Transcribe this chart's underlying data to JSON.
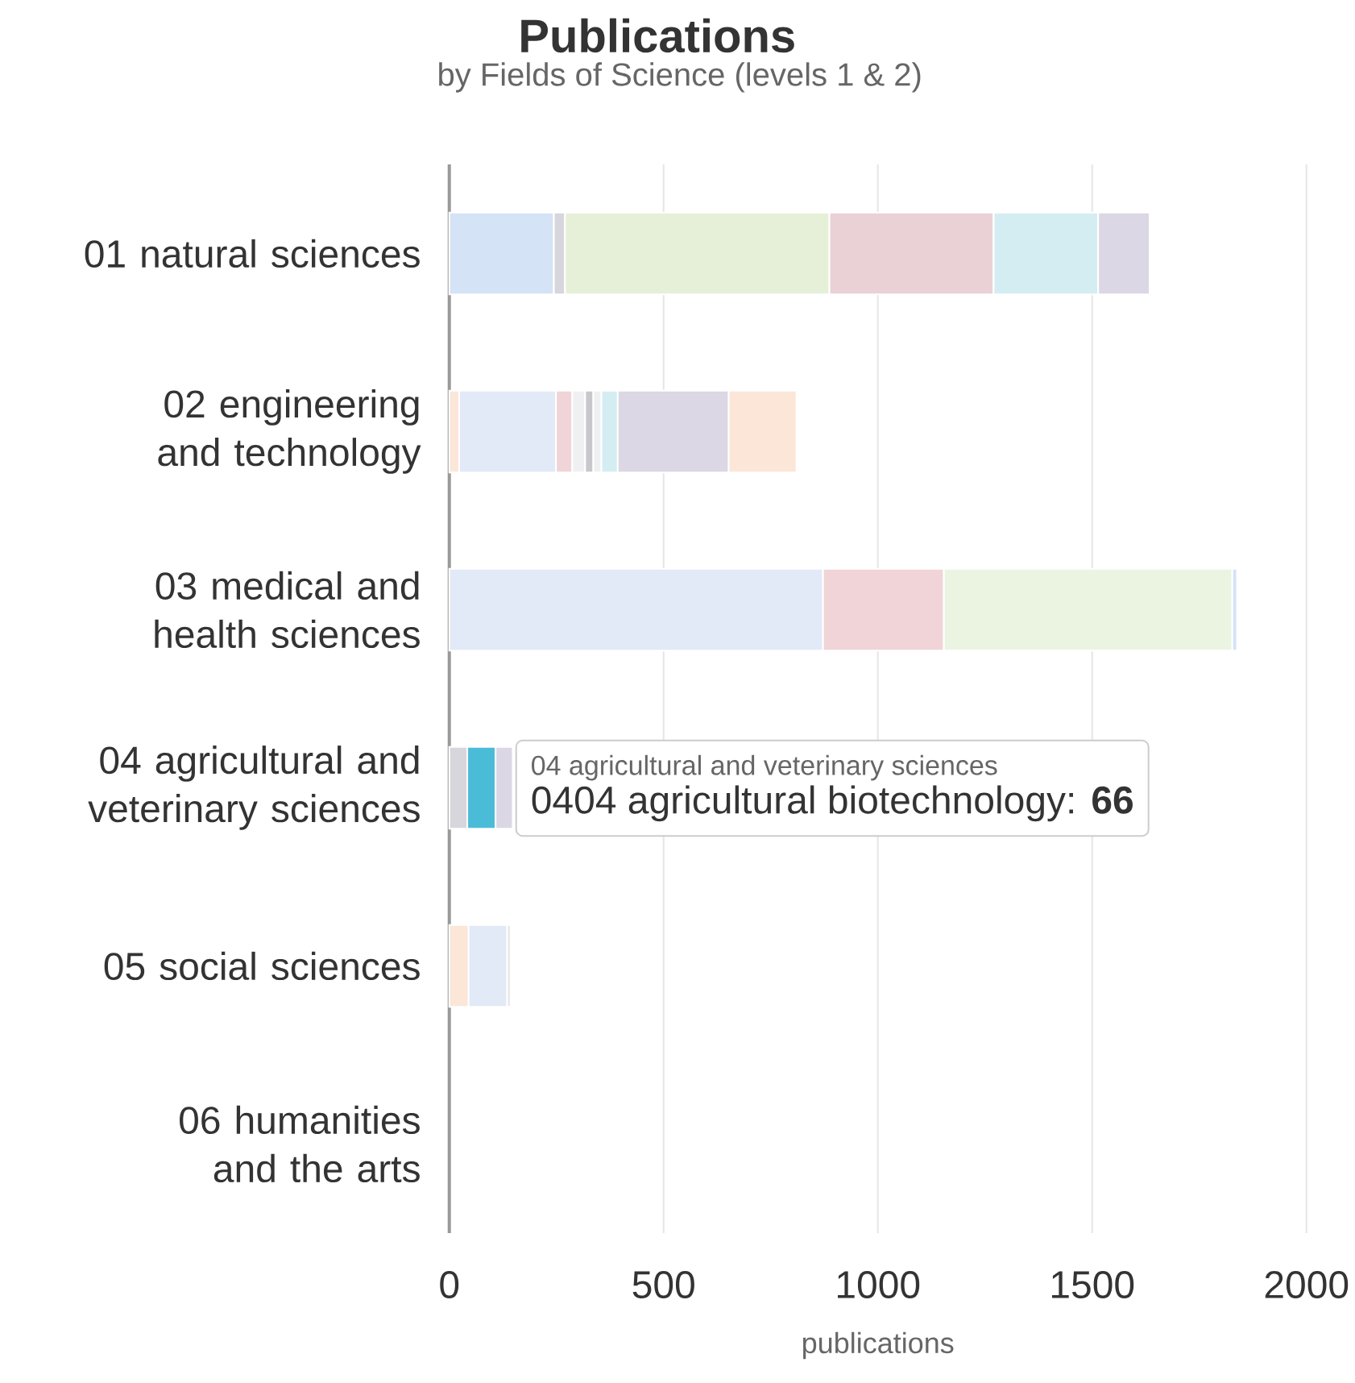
{
  "chart_data": {
    "type": "bar",
    "orientation": "horizontal",
    "stacked": true,
    "title": "Publications",
    "subtitle": "by Fields of Science (levels 1 & 2)",
    "xlabel": "publications",
    "categories": [
      "01 natural sciences",
      "02 engineering and technology",
      "03 medical and health sciences",
      "04 agricultural and veterinary sciences",
      "05 social sciences",
      "06 humanities and the arts"
    ],
    "series": [
      {
        "values": [
          244,
          23,
          872,
          42,
          45,
          null
        ],
        "colors": [
          "#d4e3f5",
          "#fbe6d8",
          "#e2e9f7",
          "#d6d6dc",
          "#fbe6d8",
          "#d4e3f5"
        ]
      },
      {
        "values": [
          26,
          226,
          282,
          66,
          90,
          null
        ],
        "colors": [
          "#d6d6dc",
          "#e2e9f7",
          "#f0d4d8",
          "#4bbcd8",
          "#e2e9f7",
          "#d4e3f5"
        ]
      },
      {
        "values": [
          617,
          38,
          673,
          40,
          8,
          null
        ],
        "colors": [
          "#e6f0d8",
          "#f0d4d8",
          "#ebf4e1",
          "#dcd7e4",
          "#e6e6ea",
          "#d4e3f5"
        ]
      },
      {
        "values": [
          383,
          30,
          11,
          null,
          null,
          null
        ],
        "colors": [
          "#ead1d6",
          "#eef0f2",
          "#d4e3f5",
          "#d4e3f5",
          "#d4e3f5",
          "#d4e3f5"
        ]
      },
      {
        "values": [
          244,
          19,
          null,
          null,
          null,
          null
        ],
        "colors": [
          "#d4edf2",
          "#c8c8cc",
          "#d4e3f5",
          "#d4e3f5",
          "#d4e3f5",
          "#d4e3f5"
        ]
      },
      {
        "values": [
          120,
          19,
          null,
          null,
          null,
          null
        ],
        "colors": [
          "#dcd7e4",
          "#eef0f2",
          "#d4e3f5",
          "#d4e3f5",
          "#d4e3f5",
          "#d4e3f5"
        ]
      },
      {
        "values": [
          null,
          38,
          null,
          null,
          null,
          null
        ],
        "colors": [
          "#d4e3f5",
          "#d4edf2",
          "#d4e3f5",
          "#d4e3f5",
          "#d4e3f5",
          "#d4e3f5"
        ]
      },
      {
        "values": [
          null,
          259,
          null,
          null,
          null,
          null
        ],
        "colors": [
          "#d4e3f5",
          "#dcd7e4",
          "#d4e3f5",
          "#d4e3f5",
          "#d4e3f5",
          "#d4e3f5"
        ]
      },
      {
        "values": [
          null,
          158,
          null,
          null,
          null,
          null
        ],
        "colors": [
          "#d4e3f5",
          "#fbe6d8",
          "#d4e3f5",
          "#d4e3f5",
          "#d4e3f5",
          "#d4e3f5"
        ]
      }
    ],
    "xlim": [
      0,
      2000
    ],
    "xticks": [
      0,
      500,
      1000,
      1500,
      2000
    ],
    "grid": "x",
    "annotations": [
      "04 agricultural and veterinary sciences",
      "0404 agricultural biotechnology: **66**"
    ]
  }
}
